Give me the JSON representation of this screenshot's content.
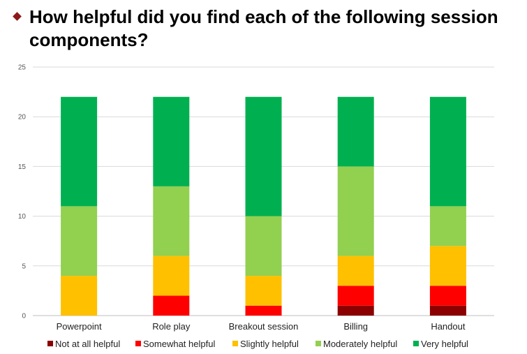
{
  "slide": {
    "title": "How helpful did you find each of the following session components?",
    "bullet_color": "#8b1a1a"
  },
  "chart_data": {
    "type": "bar",
    "stacked": true,
    "categories": [
      "Powerpoint",
      "Role play",
      "Breakout session",
      "Billing",
      "Handout"
    ],
    "series": [
      {
        "name": "Not at all helpful",
        "color": "#8b0000",
        "values": [
          0,
          0,
          0,
          1,
          1
        ]
      },
      {
        "name": "Somewhat helpful",
        "color": "#ff0000",
        "values": [
          0,
          2,
          1,
          2,
          2
        ]
      },
      {
        "name": "Slightly helpful",
        "color": "#ffc000",
        "values": [
          4,
          4,
          3,
          3,
          4
        ]
      },
      {
        "name": "Moderately helpful",
        "color": "#92d050",
        "values": [
          7,
          7,
          6,
          9,
          4
        ]
      },
      {
        "name": "Very helpful",
        "color": "#00b050",
        "values": [
          11,
          9,
          12,
          7,
          11
        ]
      }
    ],
    "yticks": [
      "0",
      "5",
      "10",
      "15",
      "20",
      "25"
    ],
    "ylim": [
      0,
      25
    ],
    "grid": true,
    "legend_position": "bottom"
  }
}
